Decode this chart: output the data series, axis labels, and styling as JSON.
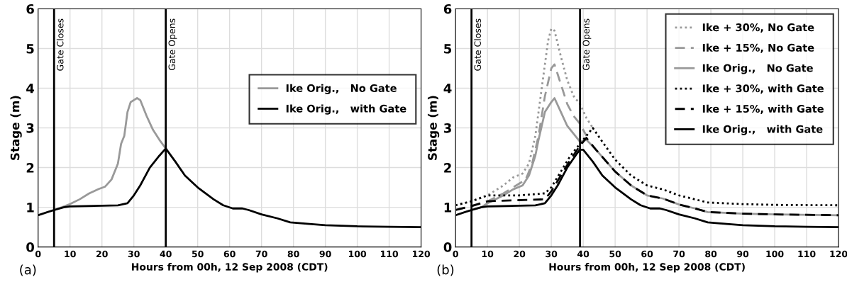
{
  "chart_data": [
    {
      "type": "line",
      "xlabel": "Hours from 00h, 12 Sep 2008 (CDT)",
      "ylabel": "Stage (m)",
      "xlim": [
        0,
        120
      ],
      "ylim": [
        0,
        6
      ],
      "xticks": [
        0,
        10,
        20,
        30,
        40,
        50,
        60,
        70,
        80,
        90,
        100,
        110,
        120
      ],
      "yticks": [
        0,
        1,
        2,
        3,
        4,
        5,
        6
      ],
      "grid": true,
      "legend": "right",
      "marker": "none",
      "annotations": [
        "(a)"
      ],
      "ref_lines": [
        {
          "axis": "x",
          "value": 5,
          "label": "Gate Closes",
          "color": "#000000"
        },
        {
          "axis": "x",
          "value": 40,
          "label": "Gate Opens",
          "color": "#000000"
        }
      ],
      "series": [
        {
          "name": "Ike Orig.,   No Gate",
          "color": "#999999",
          "line_style": "solid",
          "x": [
            0,
            5,
            8,
            10,
            13,
            16,
            19,
            21,
            23,
            25,
            26,
            27,
            28,
            29,
            31,
            32,
            34,
            36,
            38,
            40
          ],
          "values": [
            0.8,
            0.93,
            1.02,
            1.08,
            1.2,
            1.35,
            1.46,
            1.52,
            1.7,
            2.1,
            2.6,
            2.8,
            3.4,
            3.65,
            3.75,
            3.7,
            3.3,
            2.95,
            2.7,
            2.48
          ]
        },
        {
          "name": "Ike Orig.,   with Gate",
          "color": "#000000",
          "line_style": "solid",
          "x": [
            0,
            3,
            5,
            8,
            10,
            15,
            20,
            25,
            28,
            30,
            32,
            35,
            38,
            40,
            43,
            46,
            50,
            55,
            58,
            61,
            64,
            66,
            70,
            75,
            79,
            85,
            90,
            100,
            110,
            120
          ],
          "values": [
            0.8,
            0.88,
            0.93,
            1.0,
            1.02,
            1.03,
            1.04,
            1.05,
            1.1,
            1.3,
            1.55,
            2.0,
            2.3,
            2.48,
            2.15,
            1.8,
            1.5,
            1.2,
            1.05,
            0.97,
            0.97,
            0.93,
            0.82,
            0.72,
            0.62,
            0.58,
            0.55,
            0.52,
            0.51,
            0.5
          ]
        }
      ]
    },
    {
      "type": "line",
      "xlabel": "Hours from 00h, 12 Sep 2008 (CDT)",
      "ylabel": "Stage (m)",
      "xlim": [
        0,
        120
      ],
      "ylim": [
        0,
        6
      ],
      "xticks": [
        0,
        10,
        20,
        30,
        40,
        50,
        60,
        70,
        80,
        90,
        100,
        110,
        120
      ],
      "yticks": [
        0,
        1,
        2,
        3,
        4,
        5,
        6
      ],
      "grid": true,
      "legend": "top right",
      "marker": "none",
      "annotations": [
        "(b)"
      ],
      "ref_lines": [
        {
          "axis": "x",
          "value": 5,
          "label": "Gate Closes",
          "color": "#000000"
        },
        {
          "axis": "x",
          "value": 39,
          "label": "Gate Opens",
          "color": "#000000"
        }
      ],
      "series": [
        {
          "name": "Ike + 30%, No Gate",
          "color": "#999999",
          "line_style": "dotted",
          "x": [
            0,
            5,
            10,
            15,
            18,
            21,
            23,
            25,
            27,
            29,
            30,
            31,
            33,
            35,
            37,
            39,
            41,
            43
          ],
          "values": [
            1.05,
            1.15,
            1.3,
            1.55,
            1.75,
            1.85,
            2.1,
            2.8,
            4.0,
            5.2,
            5.5,
            5.45,
            4.8,
            4.2,
            3.8,
            3.6,
            3.25,
            3.0
          ]
        },
        {
          "name": "Ike + 15%, No Gate",
          "color": "#999999",
          "line_style": "dashed",
          "x": [
            0,
            5,
            10,
            15,
            20,
            22,
            24,
            26,
            28,
            30,
            31,
            33,
            35,
            37,
            39,
            41
          ],
          "values": [
            0.93,
            1.03,
            1.15,
            1.35,
            1.6,
            1.7,
            2.1,
            2.8,
            3.8,
            4.5,
            4.6,
            4.1,
            3.6,
            3.3,
            3.1,
            2.8
          ]
        },
        {
          "name": "Ike Orig.,   No Gate",
          "color": "#999999",
          "line_style": "solid",
          "x": [
            0,
            5,
            8,
            10,
            15,
            18,
            21,
            23,
            25,
            26,
            28,
            30,
            31,
            33,
            35,
            37,
            39,
            41,
            44,
            50,
            55,
            60,
            65,
            70,
            75,
            79,
            90,
            100,
            120
          ],
          "values": [
            0.8,
            0.93,
            1.0,
            1.1,
            1.3,
            1.45,
            1.55,
            1.8,
            2.3,
            2.7,
            3.4,
            3.65,
            3.75,
            3.4,
            3.05,
            2.85,
            2.65,
            2.7,
            2.45,
            1.9,
            1.55,
            1.3,
            1.22,
            1.07,
            0.97,
            0.88,
            0.84,
            0.82,
            0.8
          ]
        },
        {
          "name": "Ike + 30%, with Gate",
          "color": "#000000",
          "line_style": "dotted",
          "x": [
            0,
            5,
            10,
            20,
            28,
            30,
            33,
            36,
            39,
            41,
            43,
            46,
            50,
            55,
            60,
            65,
            70,
            75,
            79,
            90,
            100,
            120
          ],
          "values": [
            1.05,
            1.15,
            1.3,
            1.3,
            1.35,
            1.5,
            1.9,
            2.3,
            2.6,
            2.8,
            3.0,
            2.65,
            2.2,
            1.8,
            1.55,
            1.45,
            1.3,
            1.2,
            1.12,
            1.08,
            1.06,
            1.05
          ]
        },
        {
          "name": "Ike + 15%, with Gate",
          "color": "#000000",
          "line_style": "dashed",
          "x": [
            0,
            5,
            10,
            20,
            28,
            30,
            33,
            36,
            39,
            41,
            44,
            50,
            55,
            60,
            65,
            70,
            75,
            79,
            90,
            100,
            120
          ],
          "values": [
            0.93,
            1.03,
            1.15,
            1.18,
            1.2,
            1.4,
            1.8,
            2.2,
            2.55,
            2.75,
            2.45,
            1.9,
            1.55,
            1.3,
            1.22,
            1.07,
            0.97,
            0.88,
            0.84,
            0.82,
            0.8
          ]
        },
        {
          "name": "Ike Orig.,   with Gate",
          "color": "#000000",
          "line_style": "solid",
          "x": [
            0,
            3,
            5,
            8,
            10,
            15,
            20,
            25,
            28,
            30,
            32,
            35,
            38,
            39,
            40,
            43,
            46,
            50,
            55,
            58,
            61,
            64,
            66,
            70,
            75,
            79,
            85,
            90,
            100,
            110,
            120
          ],
          "values": [
            0.8,
            0.88,
            0.93,
            1.0,
            1.02,
            1.03,
            1.04,
            1.05,
            1.1,
            1.3,
            1.55,
            2.0,
            2.35,
            2.45,
            2.45,
            2.15,
            1.8,
            1.5,
            1.2,
            1.05,
            0.97,
            0.97,
            0.93,
            0.82,
            0.72,
            0.62,
            0.58,
            0.55,
            0.52,
            0.51,
            0.5
          ]
        }
      ]
    }
  ]
}
